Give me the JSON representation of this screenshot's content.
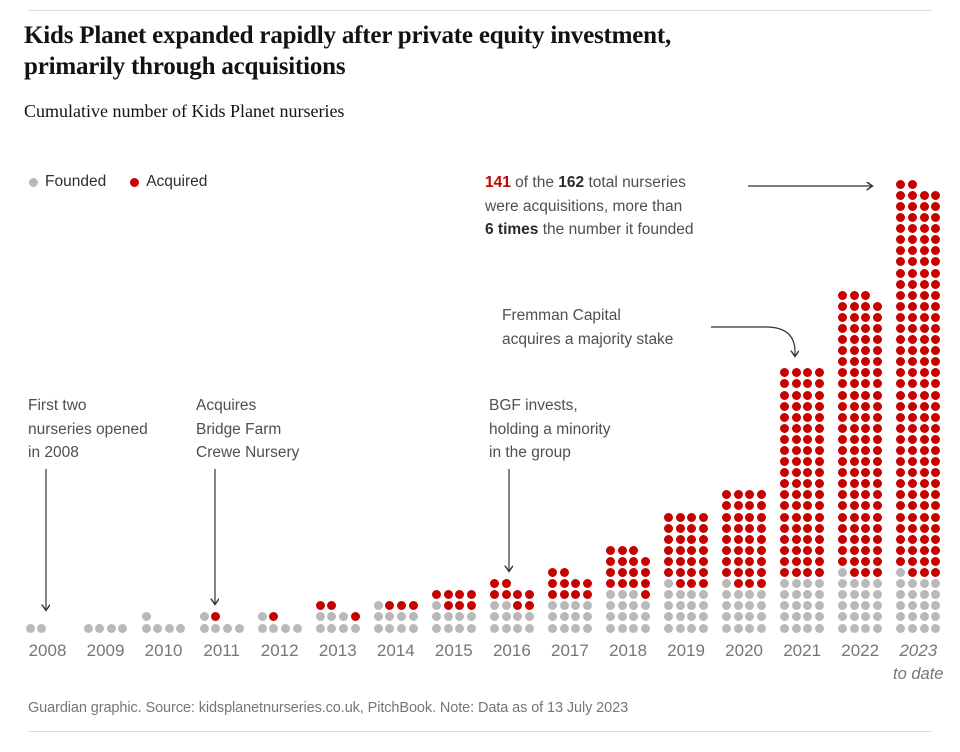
{
  "header": {
    "title_lines": [
      "Kids Planet expanded rapidly after private equity investment,",
      "primarily through acquisitions"
    ],
    "subtitle": "Cumulative number of Kids Planet nurseries"
  },
  "legend": {
    "items": [
      {
        "label": "Founded",
        "color": "#b9b9b9"
      },
      {
        "label": "Acquired",
        "color": "#c70000"
      }
    ]
  },
  "annotations": [
    {
      "id": "note-total",
      "lines": [
        [
          {
            "t": "141",
            "b": 1,
            "c": "#c70000"
          },
          {
            "t": " of the "
          },
          {
            "t": "162",
            "b": 1
          },
          {
            "t": " total nurseries"
          }
        ],
        [
          {
            "t": "were acquisitions, more than"
          }
        ],
        [
          {
            "t": "6 times",
            "b": 1
          },
          {
            "t": " the number it founded"
          }
        ]
      ]
    },
    {
      "id": "note-fremman",
      "lines": [
        [
          {
            "t": "Fremman Capital"
          }
        ],
        [
          {
            "t": "acquires a majority stake"
          }
        ]
      ]
    },
    {
      "id": "note-bgf",
      "lines": [
        [
          {
            "t": "BGF invests,"
          }
        ],
        [
          {
            "t": "holding a minority"
          }
        ],
        [
          {
            "t": "in the group"
          }
        ]
      ]
    },
    {
      "id": "note-first",
      "lines": [
        [
          {
            "t": "First two"
          }
        ],
        [
          {
            "t": "nurseries opened"
          }
        ],
        [
          {
            "t": "in 2008"
          }
        ]
      ]
    },
    {
      "id": "note-acquires",
      "lines": [
        [
          {
            "t": "Acquires"
          }
        ],
        [
          {
            "t": "Bridge Farm"
          }
        ],
        [
          {
            "t": "Crewe Nursery"
          }
        ]
      ]
    }
  ],
  "chart_data": {
    "type": "bar",
    "variant": "unit-dot-waffle-columns",
    "title": "Cumulative number of Kids Planet nurseries",
    "categories": [
      "2008",
      "2009",
      "2010",
      "2011",
      "2012",
      "2013",
      "2014",
      "2015",
      "2016",
      "2017",
      "2018",
      "2019",
      "2020",
      "2021",
      "2022",
      "2023"
    ],
    "series": [
      {
        "name": "Founded",
        "color": "#b9b9b9",
        "values": [
          2,
          4,
          5,
          5,
          5,
          7,
          9,
          9,
          10,
          12,
          15,
          17,
          17,
          20,
          21,
          21
        ]
      },
      {
        "name": "Acquired",
        "color": "#c70000",
        "values": [
          0,
          0,
          0,
          1,
          1,
          3,
          3,
          7,
          8,
          10,
          16,
          27,
          35,
          76,
          102,
          141
        ]
      }
    ],
    "totals": [
      2,
      4,
      5,
      6,
      6,
      10,
      12,
      16,
      18,
      22,
      31,
      44,
      52,
      96,
      123,
      162
    ],
    "dots_per_row": 4,
    "legend_position": "top-left",
    "grid": false
  },
  "x_axis": {
    "labels": [
      "2008",
      "2009",
      "2010",
      "2011",
      "2012",
      "2013",
      "2014",
      "2015",
      "2016",
      "2017",
      "2018",
      "2019",
      "2020",
      "2021",
      "2022",
      "2023"
    ],
    "italic_label": "2023",
    "sub_label": "to date"
  },
  "footer": {
    "text": "Guardian graphic. Source: kidsplanetnurseries.co.uk, PitchBook. Note: Data as of 13 July 2023"
  }
}
